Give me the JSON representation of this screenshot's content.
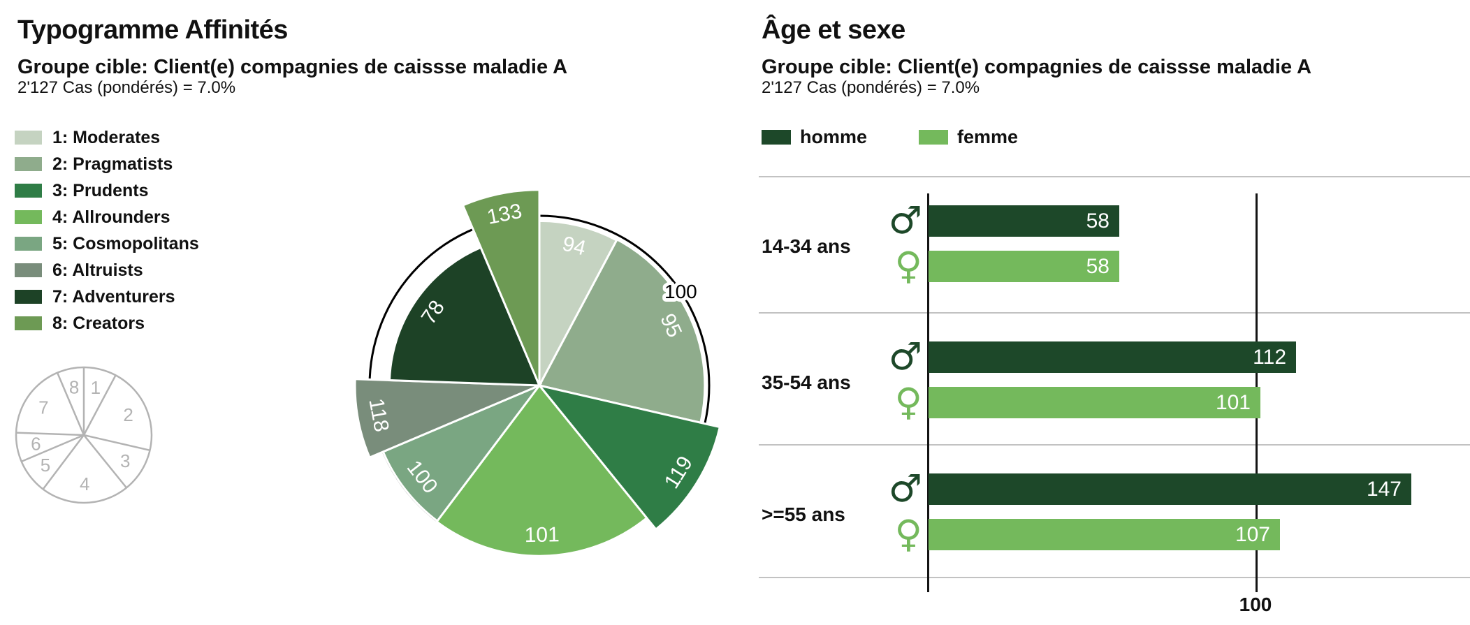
{
  "left_panel": {
    "title": "Typogramme Affinités",
    "subtitle": "Groupe cible: Client(e) compagnies de caissse maladie A",
    "cases": "2'127 Cas (pondérés) = 7.0%",
    "legend": [
      {
        "label": "1: Moderates",
        "color": "#c5d3c1"
      },
      {
        "label": "2: Pragmatists",
        "color": "#8fac8c"
      },
      {
        "label": "3: Prudents",
        "color": "#2f7d46"
      },
      {
        "label": "4: Allrounders",
        "color": "#74b95c"
      },
      {
        "label": "5: Cosmopolitans",
        "color": "#7aa682"
      },
      {
        "label": "6: Altruists",
        "color": "#798d7b"
      },
      {
        "label": "7: Adventurers",
        "color": "#1d4226"
      },
      {
        "label": "8: Creators",
        "color": "#6d9a54"
      }
    ]
  },
  "right_panel": {
    "title": "Âge et sexe",
    "subtitle": "Groupe cible: Client(e) compagnies de caissse maladie A",
    "cases": "2'127 Cas (pondérés) = 7.0%",
    "legend": [
      {
        "label": "homme",
        "color": "#1d4829"
      },
      {
        "label": "femme",
        "color": "#74b95c"
      }
    ],
    "gender_icons": {
      "male": "♂",
      "female": "♀"
    },
    "x_axis_label": "100"
  },
  "chart_data": [
    {
      "type": "polar-area",
      "title": "Typogramme Affinités",
      "scale": "radius proportional to sqrt(value), reference circle = 100",
      "reference_value": 100,
      "axis_label": "100",
      "axis_label_angle_deg": 56.4,
      "segments": [
        {
          "id": "1",
          "name": "Moderates",
          "value": 94,
          "color": "#c5d3c1",
          "start_deg": 0,
          "end_deg": 28
        },
        {
          "id": "2",
          "name": "Pragmatists",
          "value": 95,
          "color": "#8fac8c",
          "start_deg": 28,
          "end_deg": 103
        },
        {
          "id": "3",
          "name": "Prudents",
          "value": 119,
          "color": "#2f7d46",
          "start_deg": 103,
          "end_deg": 141
        },
        {
          "id": "4",
          "name": "Allrounders",
          "value": 101,
          "color": "#74b95c",
          "start_deg": 141,
          "end_deg": 217
        },
        {
          "id": "5",
          "name": "Cosmopolitans",
          "value": 100,
          "color": "#7aa682",
          "start_deg": 217,
          "end_deg": 247
        },
        {
          "id": "6",
          "name": "Altruists",
          "value": 118,
          "color": "#798d7b",
          "start_deg": 247,
          "end_deg": 272
        },
        {
          "id": "7",
          "name": "Adventurers",
          "value": 78,
          "color": "#1d4226",
          "start_deg": 272,
          "end_deg": 337
        },
        {
          "id": "8",
          "name": "Creators",
          "value": 133,
          "color": "#6d9a54",
          "start_deg": 337,
          "end_deg": 360
        }
      ]
    },
    {
      "type": "bar",
      "title": "Âge et sexe",
      "orientation": "horizontal",
      "categories": [
        "14-34 ans",
        "35-54 ans",
        ">=55 ans"
      ],
      "series": [
        {
          "name": "homme",
          "color": "#1d4829",
          "values": [
            58,
            112,
            147
          ]
        },
        {
          "name": "femme",
          "color": "#74b95c",
          "values": [
            58,
            101,
            107
          ]
        }
      ],
      "reference_line": 100,
      "x_axis_label": "100",
      "xlim": [
        0,
        165
      ],
      "grid": "row dividers only",
      "legend_position": "top"
    }
  ]
}
